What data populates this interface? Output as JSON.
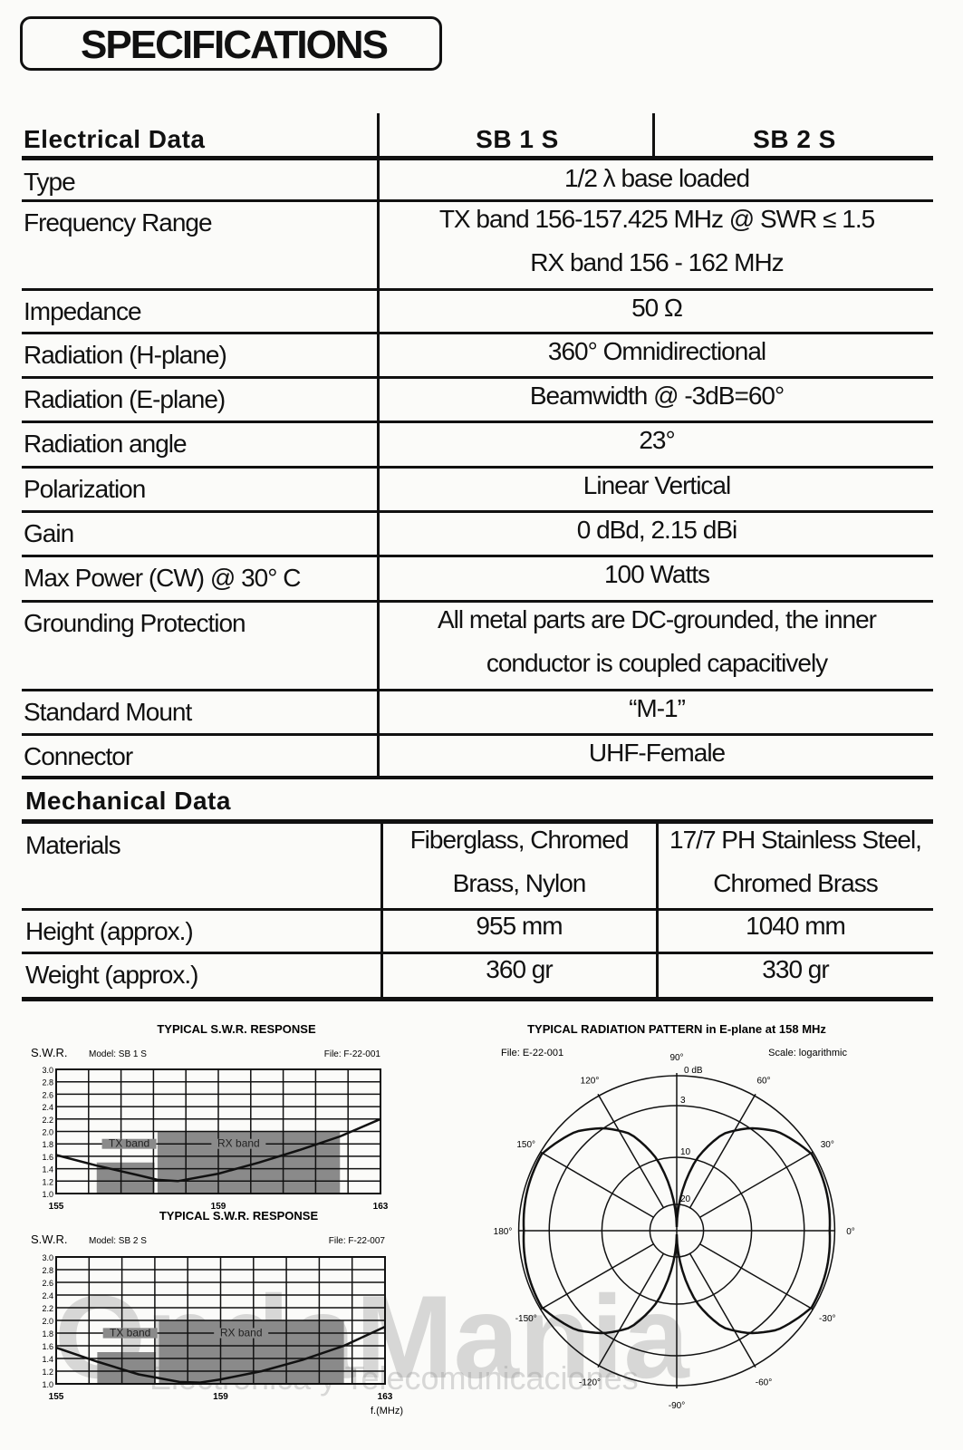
{
  "title": "SPECIFICATIONS",
  "electrical": {
    "heading": "Electrical Data",
    "columns": [
      "SB 1 S",
      "SB 2 S"
    ],
    "rows": [
      {
        "label": "Type",
        "value": [
          "1/2 λ  base loaded"
        ]
      },
      {
        "label": "Frequency Range",
        "value": [
          "TX band 156-157.425 MHz @ SWR ≤ 1.5",
          "RX band 156 - 162 MHz"
        ]
      },
      {
        "label": "Impedance",
        "value": [
          "50 Ω"
        ]
      },
      {
        "label": "Radiation (H-plane)",
        "value": [
          "360° Omnidirectional"
        ]
      },
      {
        "label": "Radiation (E-plane)",
        "value": [
          "Beamwidth @ -3dB=60°"
        ]
      },
      {
        "label": "Radiation angle",
        "value": [
          "23°"
        ]
      },
      {
        "label": "Polarization",
        "value": [
          "Linear Vertical"
        ]
      },
      {
        "label": "Gain",
        "value": [
          "0 dBd, 2.15 dBi"
        ]
      },
      {
        "label": "Max Power (CW)  @ 30° C",
        "value": [
          "100 Watts"
        ]
      },
      {
        "label": "Grounding Protection",
        "value": [
          "All metal parts are DC-grounded, the inner",
          "conductor is coupled capacitively"
        ]
      },
      {
        "label": "Standard Mount",
        "value": [
          "“M-1”"
        ]
      },
      {
        "label": "Connector",
        "value": [
          "UHF-Female"
        ]
      }
    ]
  },
  "mechanical": {
    "heading": "Mechanical Data",
    "rows": [
      {
        "label": "Materials",
        "sb1s": [
          "Fiberglass, Chromed",
          "Brass, Nylon"
        ],
        "sb2s": [
          "17/7 PH Stainless Steel,",
          "Chromed Brass"
        ]
      },
      {
        "label": "Height (approx.)",
        "sb1s": [
          "955 mm"
        ],
        "sb2s": [
          "1040 mm"
        ]
      },
      {
        "label": "Weight (approx.)",
        "sb1s": [
          "360 gr"
        ],
        "sb2s": [
          "330 gr"
        ]
      }
    ]
  },
  "watermark": {
    "brand": "OndaMania",
    "tagline": "Electronica y Telecomunicaciones"
  },
  "chart_data": [
    {
      "type": "line",
      "title": "TYPICAL S.W.R. RESPONSE",
      "ylabel": "S.W.R.",
      "model": "Model: SB 1 S",
      "file": "File: F-22-001",
      "xlim": [
        155,
        163
      ],
      "ylim": [
        1.0,
        3.0
      ],
      "yticks": [
        "3.0",
        "2.8",
        "2.6",
        "2.4",
        "2.2",
        "2.0",
        "1.8",
        "1.6",
        "1.4",
        "1.2",
        "1.0"
      ],
      "xticks": [
        "155",
        "159",
        "163"
      ],
      "grid": true,
      "bands": [
        {
          "name": "TX band",
          "from": 156,
          "to": 157.425,
          "top": 1.5
        },
        {
          "name": "RX band",
          "from": 157.5,
          "to": 162,
          "top": 2.0
        }
      ],
      "x": [
        155,
        156,
        157,
        157.5,
        158,
        159,
        160,
        161,
        162,
        163
      ],
      "y": [
        1.62,
        1.45,
        1.3,
        1.22,
        1.2,
        1.32,
        1.5,
        1.7,
        1.92,
        2.2
      ]
    },
    {
      "type": "line",
      "title": "TYPICAL S.W.R. RESPONSE",
      "ylabel": "S.W.R.",
      "xlabel": "f.(MHz)",
      "model": "Model: SB 2 S",
      "file": "File: F-22-007",
      "xlim": [
        155,
        163
      ],
      "ylim": [
        1.0,
        3.0
      ],
      "yticks": [
        "3.0",
        "2.8",
        "2.6",
        "2.4",
        "2.2",
        "2.0",
        "1.8",
        "1.6",
        "1.4",
        "1.2",
        "1.0"
      ],
      "xticks": [
        "155",
        "159",
        "163"
      ],
      "grid": true,
      "bands": [
        {
          "name": "TX band",
          "from": 156,
          "to": 157.425,
          "top": 1.5
        },
        {
          "name": "RX band",
          "from": 157.5,
          "to": 162,
          "top": 2.0
        }
      ],
      "x": [
        155,
        156,
        157,
        158,
        158.5,
        159,
        160,
        161,
        162,
        163
      ],
      "y": [
        1.57,
        1.35,
        1.15,
        1.03,
        1.02,
        1.07,
        1.2,
        1.38,
        1.6,
        1.9
      ]
    },
    {
      "type": "polar",
      "title": "TYPICAL RADIATION PATTERN in E-plane at 158 MHz",
      "file": "File: E-22-001",
      "scale": "Scale: logarithmic",
      "radial_ticks": [
        "0 dB",
        "3",
        "10",
        "20"
      ],
      "radial_values_db": [
        0,
        -3,
        -10,
        -20
      ],
      "angle_labels": [
        "0°",
        "30°",
        "60°",
        "90°",
        "120°",
        "150°",
        "180°",
        "-150°",
        "-120°",
        "-90°",
        "-60°",
        "-30°"
      ],
      "angles_deg": [
        0,
        30,
        60,
        90,
        120,
        150,
        180,
        -150,
        -120,
        -90,
        -60,
        -30
      ],
      "pattern_angle_deg": [
        0,
        15,
        30,
        45,
        55,
        65,
        75,
        85,
        90
      ],
      "pattern_db": [
        -0.5,
        -0.3,
        -0.2,
        -1.5,
        -3,
        -5.5,
        -10,
        -20,
        -25
      ],
      "symmetry": "mirrored about 0°-180° and ±90° axes"
    }
  ]
}
